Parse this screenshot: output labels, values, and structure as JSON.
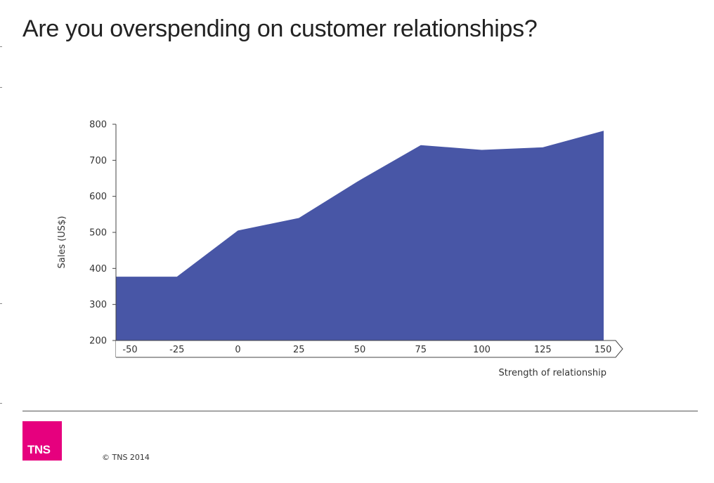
{
  "title": "Are you overspending on customer relationships?",
  "chart_data": {
    "type": "area",
    "x": [
      -50,
      -25,
      0,
      25,
      50,
      75,
      100,
      125,
      150
    ],
    "x_tick_labels": [
      "-50",
      "-25",
      "0",
      "25",
      "50",
      "75",
      "100",
      "125",
      "150"
    ],
    "series": [
      {
        "values": [
          377,
          377,
          505,
          540,
          645,
          742,
          729,
          736,
          782
        ]
      }
    ],
    "xlabel": "Strength of relationship",
    "ylabel": "Sales (US$)",
    "ylim": [
      200,
      800
    ],
    "y_ticks": [
      200,
      300,
      400,
      500,
      600,
      700,
      800
    ],
    "grid": false,
    "legend": "none",
    "colors": {
      "area_fill": "#4856a6",
      "axis": "#444444",
      "text": "#333333"
    }
  },
  "footer": {
    "logo_text": "TNS",
    "copyright": "© TNS 2014"
  },
  "colors": {
    "brand_magenta": "#e6007e",
    "title": "#222222"
  }
}
